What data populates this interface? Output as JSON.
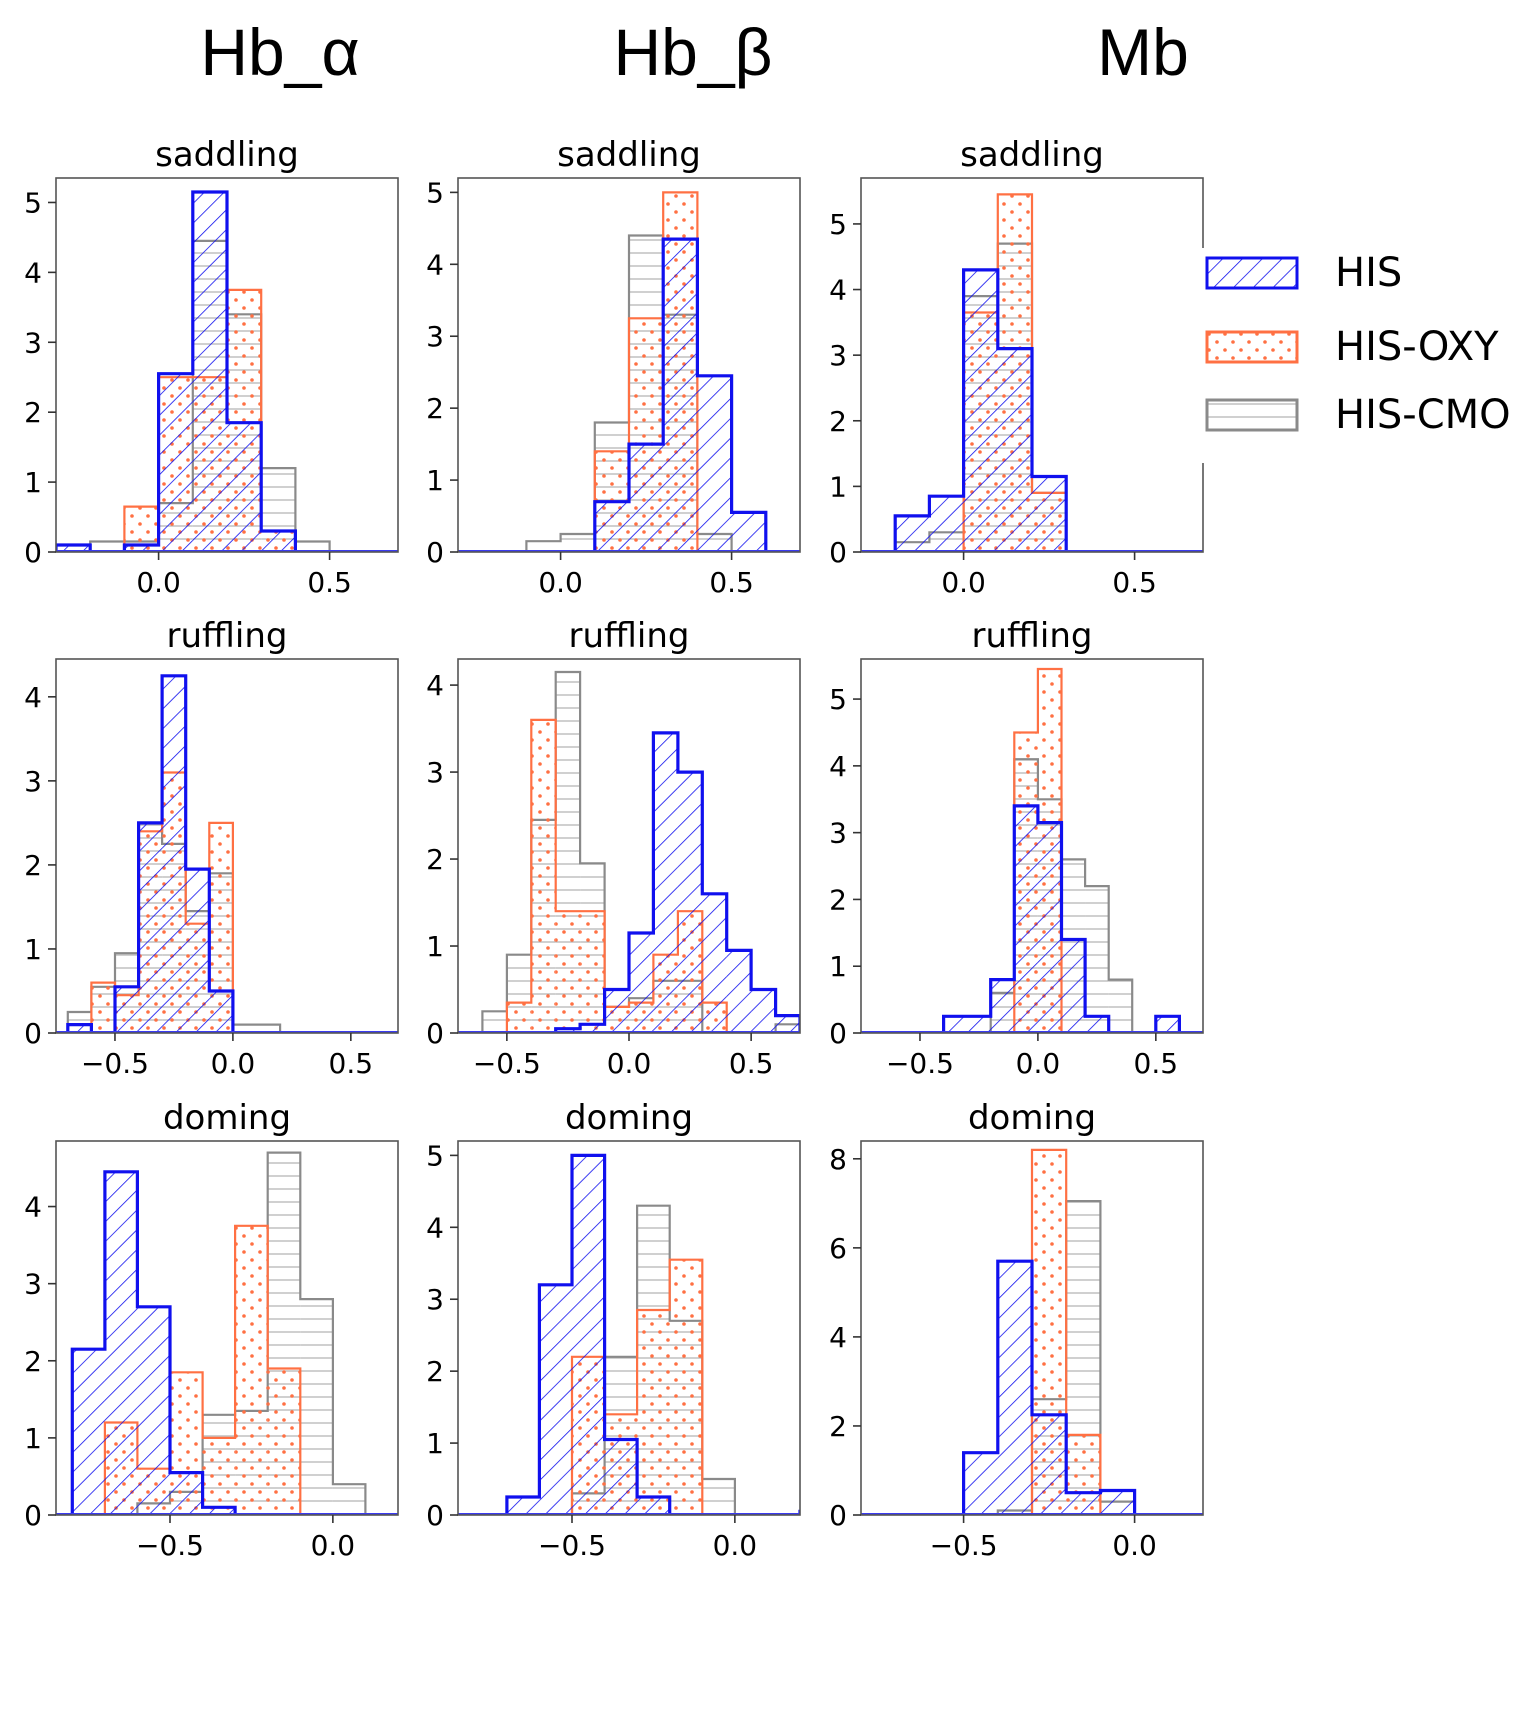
{
  "column_titles": [
    "Hb_α",
    "Hb_β",
    "Mb"
  ],
  "legend": {
    "entries": [
      {
        "label": "HIS",
        "color": "#1010ee",
        "pattern": "diagonal-hatch"
      },
      {
        "label": "HIS-OXY",
        "color": "#ff7043",
        "pattern": "dots"
      },
      {
        "label": "HIS-CMO",
        "color": "#8a8a8a",
        "pattern": "horizontal-lines"
      }
    ]
  },
  "chart_data": [
    {
      "type": "histogram",
      "title": "saddling",
      "column": "Hb_α",
      "bin_width": 0.1,
      "xlim": [
        -0.3,
        0.7
      ],
      "ylim": [
        0,
        5.35
      ],
      "xticks": [
        {
          "v": 0.0,
          "label": "0.0"
        },
        {
          "v": 0.5,
          "label": "0.5"
        }
      ],
      "yticks": [
        {
          "v": 0,
          "label": "0"
        },
        {
          "v": 1,
          "label": "1"
        },
        {
          "v": 2,
          "label": "2"
        },
        {
          "v": 3,
          "label": "3"
        },
        {
          "v": 4,
          "label": "4"
        },
        {
          "v": 5,
          "label": "5"
        }
      ],
      "series": [
        {
          "name": "HIS-CMO",
          "start": -0.2,
          "values": [
            0.15,
            0.15,
            0.7,
            4.45,
            3.4,
            1.2,
            0.15
          ]
        },
        {
          "name": "HIS-OXY",
          "start": -0.1,
          "values": [
            0.65,
            2.5,
            2.5,
            3.75,
            0.3
          ]
        },
        {
          "name": "HIS",
          "start": -0.3,
          "values": [
            0.1,
            0.0,
            0.1,
            2.55,
            5.15,
            1.85,
            0.3
          ]
        }
      ]
    },
    {
      "type": "histogram",
      "title": "saddling",
      "column": "Hb_β",
      "bin_width": 0.1,
      "xlim": [
        -0.3,
        0.7
      ],
      "ylim": [
        0,
        5.2
      ],
      "xticks": [
        {
          "v": 0.0,
          "label": "0.0"
        },
        {
          "v": 0.5,
          "label": "0.5"
        }
      ],
      "yticks": [
        {
          "v": 0,
          "label": "0"
        },
        {
          "v": 1,
          "label": "1"
        },
        {
          "v": 2,
          "label": "2"
        },
        {
          "v": 3,
          "label": "3"
        },
        {
          "v": 4,
          "label": "4"
        },
        {
          "v": 5,
          "label": "5"
        }
      ],
      "series": [
        {
          "name": "HIS-CMO",
          "start": -0.1,
          "values": [
            0.15,
            0.25,
            1.8,
            4.4,
            3.3,
            0.25
          ]
        },
        {
          "name": "HIS-OXY",
          "start": 0.1,
          "values": [
            1.4,
            3.25,
            5.0
          ]
        },
        {
          "name": "HIS",
          "start": 0.1,
          "values": [
            0.7,
            1.5,
            4.35,
            2.45,
            0.55
          ]
        }
      ]
    },
    {
      "type": "histogram",
      "title": "saddling",
      "column": "Mb",
      "bin_width": 0.1,
      "xlim": [
        -0.3,
        0.7
      ],
      "ylim": [
        0,
        5.7
      ],
      "xticks": [
        {
          "v": 0.0,
          "label": "0.0"
        },
        {
          "v": 0.5,
          "label": "0.5"
        }
      ],
      "yticks": [
        {
          "v": 0,
          "label": "0"
        },
        {
          "v": 1,
          "label": "1"
        },
        {
          "v": 2,
          "label": "2"
        },
        {
          "v": 3,
          "label": "3"
        },
        {
          "v": 4,
          "label": "4"
        },
        {
          "v": 5,
          "label": "5"
        }
      ],
      "series": [
        {
          "name": "HIS-CMO",
          "start": -0.2,
          "values": [
            0.15,
            0.3,
            3.9,
            4.7,
            0.9
          ]
        },
        {
          "name": "HIS-OXY",
          "start": 0.0,
          "values": [
            3.65,
            5.45,
            0.9
          ]
        },
        {
          "name": "HIS",
          "start": -0.2,
          "values": [
            0.55,
            0.85,
            4.3,
            3.1,
            1.15
          ]
        }
      ]
    },
    {
      "type": "histogram",
      "title": "ruffling",
      "column": "Hb_α",
      "bin_width": 0.1,
      "xlim": [
        -0.75,
        0.7
      ],
      "ylim": [
        0,
        4.45
      ],
      "xticks": [
        {
          "v": -0.5,
          "label": "−0.5"
        },
        {
          "v": 0.0,
          "label": "0.0"
        },
        {
          "v": 0.5,
          "label": "0.5"
        }
      ],
      "yticks": [
        {
          "v": 0,
          "label": "0"
        },
        {
          "v": 1,
          "label": "1"
        },
        {
          "v": 2,
          "label": "2"
        },
        {
          "v": 3,
          "label": "3"
        },
        {
          "v": 4,
          "label": "4"
        }
      ],
      "series": [
        {
          "name": "HIS-CMO",
          "start": -0.7,
          "values": [
            0.25,
            0.55,
            0.95,
            2.5,
            2.25,
            1.45,
            1.9,
            0.1,
            0.1
          ]
        },
        {
          "name": "HIS-OXY",
          "start": -0.6,
          "values": [
            0.6,
            0.45,
            2.4,
            3.1,
            1.3,
            2.5
          ]
        },
        {
          "name": "HIS",
          "start": -0.7,
          "values": [
            0.1,
            0.0,
            0.55,
            2.5,
            4.25,
            1.95,
            0.5
          ]
        }
      ]
    },
    {
      "type": "histogram",
      "title": "ruffling",
      "column": "Hb_β",
      "bin_width": 0.1,
      "xlim": [
        -0.7,
        0.7
      ],
      "ylim": [
        0,
        4.3
      ],
      "xticks": [
        {
          "v": -0.5,
          "label": "−0.5"
        },
        {
          "v": 0.0,
          "label": "0.0"
        },
        {
          "v": 0.5,
          "label": "0.5"
        }
      ],
      "yticks": [
        {
          "v": 0,
          "label": "0"
        },
        {
          "v": 1,
          "label": "1"
        },
        {
          "v": 2,
          "label": "2"
        },
        {
          "v": 3,
          "label": "3"
        },
        {
          "v": 4,
          "label": "4"
        }
      ],
      "series": [
        {
          "name": "HIS-CMO",
          "start": -0.6,
          "values": [
            0.25,
            0.9,
            2.45,
            4.15,
            1.95,
            0.3,
            0.4,
            0.6,
            0.6,
            0.0,
            0.0,
            0.0,
            0.1
          ]
        },
        {
          "name": "HIS-OXY",
          "start": -0.5,
          "values": [
            0.35,
            3.6,
            1.4,
            1.4,
            0.3,
            0.35,
            0.9,
            1.4,
            0.35
          ]
        },
        {
          "name": "HIS",
          "start": -0.3,
          "values": [
            0.05,
            0.1,
            0.5,
            1.15,
            3.45,
            3.0,
            1.6,
            0.95,
            0.5,
            0.2
          ]
        }
      ]
    },
    {
      "type": "histogram",
      "title": "ruffling",
      "column": "Mb",
      "bin_width": 0.1,
      "xlim": [
        -0.75,
        0.7
      ],
      "ylim": [
        0,
        5.6
      ],
      "xticks": [
        {
          "v": -0.5,
          "label": "−0.5"
        },
        {
          "v": 0.0,
          "label": "0.0"
        },
        {
          "v": 0.5,
          "label": "0.5"
        }
      ],
      "yticks": [
        {
          "v": 0,
          "label": "0"
        },
        {
          "v": 1,
          "label": "1"
        },
        {
          "v": 2,
          "label": "2"
        },
        {
          "v": 3,
          "label": "3"
        },
        {
          "v": 4,
          "label": "4"
        },
        {
          "v": 5,
          "label": "5"
        }
      ],
      "series": [
        {
          "name": "HIS-CMO",
          "start": -0.2,
          "values": [
            0.6,
            4.1,
            3.5,
            2.6,
            2.2,
            0.8
          ]
        },
        {
          "name": "HIS-OXY",
          "start": -0.1,
          "values": [
            4.5,
            5.45
          ]
        },
        {
          "name": "HIS",
          "start": -0.4,
          "values": [
            0.25,
            0.25,
            0.8,
            3.4,
            3.15,
            1.4,
            0.25,
            0.0,
            0.0,
            0.25
          ]
        }
      ]
    },
    {
      "type": "histogram",
      "title": "doming",
      "column": "Hb_α",
      "bin_width": 0.1,
      "xlim": [
        -0.85,
        0.2
      ],
      "ylim": [
        0,
        4.85
      ],
      "xticks": [
        {
          "v": -0.5,
          "label": "−0.5"
        },
        {
          "v": 0.0,
          "label": "0.0"
        }
      ],
      "yticks": [
        {
          "v": 0,
          "label": "0"
        },
        {
          "v": 1,
          "label": "1"
        },
        {
          "v": 2,
          "label": "2"
        },
        {
          "v": 3,
          "label": "3"
        },
        {
          "v": 4,
          "label": "4"
        }
      ],
      "series": [
        {
          "name": "HIS-CMO",
          "start": -0.6,
          "values": [
            0.15,
            0.3,
            1.3,
            1.35,
            4.7,
            2.8,
            0.4
          ]
        },
        {
          "name": "HIS-OXY",
          "start": -0.7,
          "values": [
            1.2,
            0.6,
            1.85,
            1.0,
            3.75,
            1.9
          ]
        },
        {
          "name": "HIS",
          "start": -0.8,
          "values": [
            2.15,
            4.45,
            2.7,
            0.55,
            0.1
          ]
        }
      ]
    },
    {
      "type": "histogram",
      "title": "doming",
      "column": "Hb_β",
      "bin_width": 0.1,
      "xlim": [
        -0.85,
        0.2
      ],
      "ylim": [
        0,
        5.2
      ],
      "xticks": [
        {
          "v": -0.5,
          "label": "−0.5"
        },
        {
          "v": 0.0,
          "label": "0.0"
        }
      ],
      "yticks": [
        {
          "v": 0,
          "label": "0"
        },
        {
          "v": 1,
          "label": "1"
        },
        {
          "v": 2,
          "label": "2"
        },
        {
          "v": 3,
          "label": "3"
        },
        {
          "v": 4,
          "label": "4"
        },
        {
          "v": 5,
          "label": "5"
        }
      ],
      "series": [
        {
          "name": "HIS-CMO",
          "start": -0.5,
          "values": [
            0.3,
            2.2,
            4.3,
            2.7,
            0.5
          ]
        },
        {
          "name": "HIS-OXY",
          "start": -0.5,
          "values": [
            2.2,
            1.4,
            2.85,
            3.55
          ]
        },
        {
          "name": "HIS",
          "start": -0.7,
          "values": [
            0.25,
            3.2,
            5.0,
            1.05,
            0.25,
            0.0,
            0.0,
            0.0,
            0.0,
            0.05
          ]
        }
      ]
    },
    {
      "type": "histogram",
      "title": "doming",
      "column": "Mb",
      "bin_width": 0.1,
      "xlim": [
        -0.8,
        0.2
      ],
      "ylim": [
        0,
        8.4
      ],
      "xticks": [
        {
          "v": -0.5,
          "label": "−0.5"
        },
        {
          "v": 0.0,
          "label": "0.0"
        }
      ],
      "yticks": [
        {
          "v": 0,
          "label": "0"
        },
        {
          "v": 2,
          "label": "2"
        },
        {
          "v": 4,
          "label": "4"
        },
        {
          "v": 6,
          "label": "6"
        },
        {
          "v": 8,
          "label": "8"
        }
      ],
      "series": [
        {
          "name": "HIS-CMO",
          "start": -0.4,
          "values": [
            0.1,
            2.6,
            7.05,
            0.3
          ]
        },
        {
          "name": "HIS-OXY",
          "start": -0.3,
          "values": [
            8.2,
            1.8
          ]
        },
        {
          "name": "HIS",
          "start": -0.5,
          "values": [
            1.4,
            5.7,
            2.25,
            0.5,
            0.55
          ]
        }
      ]
    }
  ]
}
